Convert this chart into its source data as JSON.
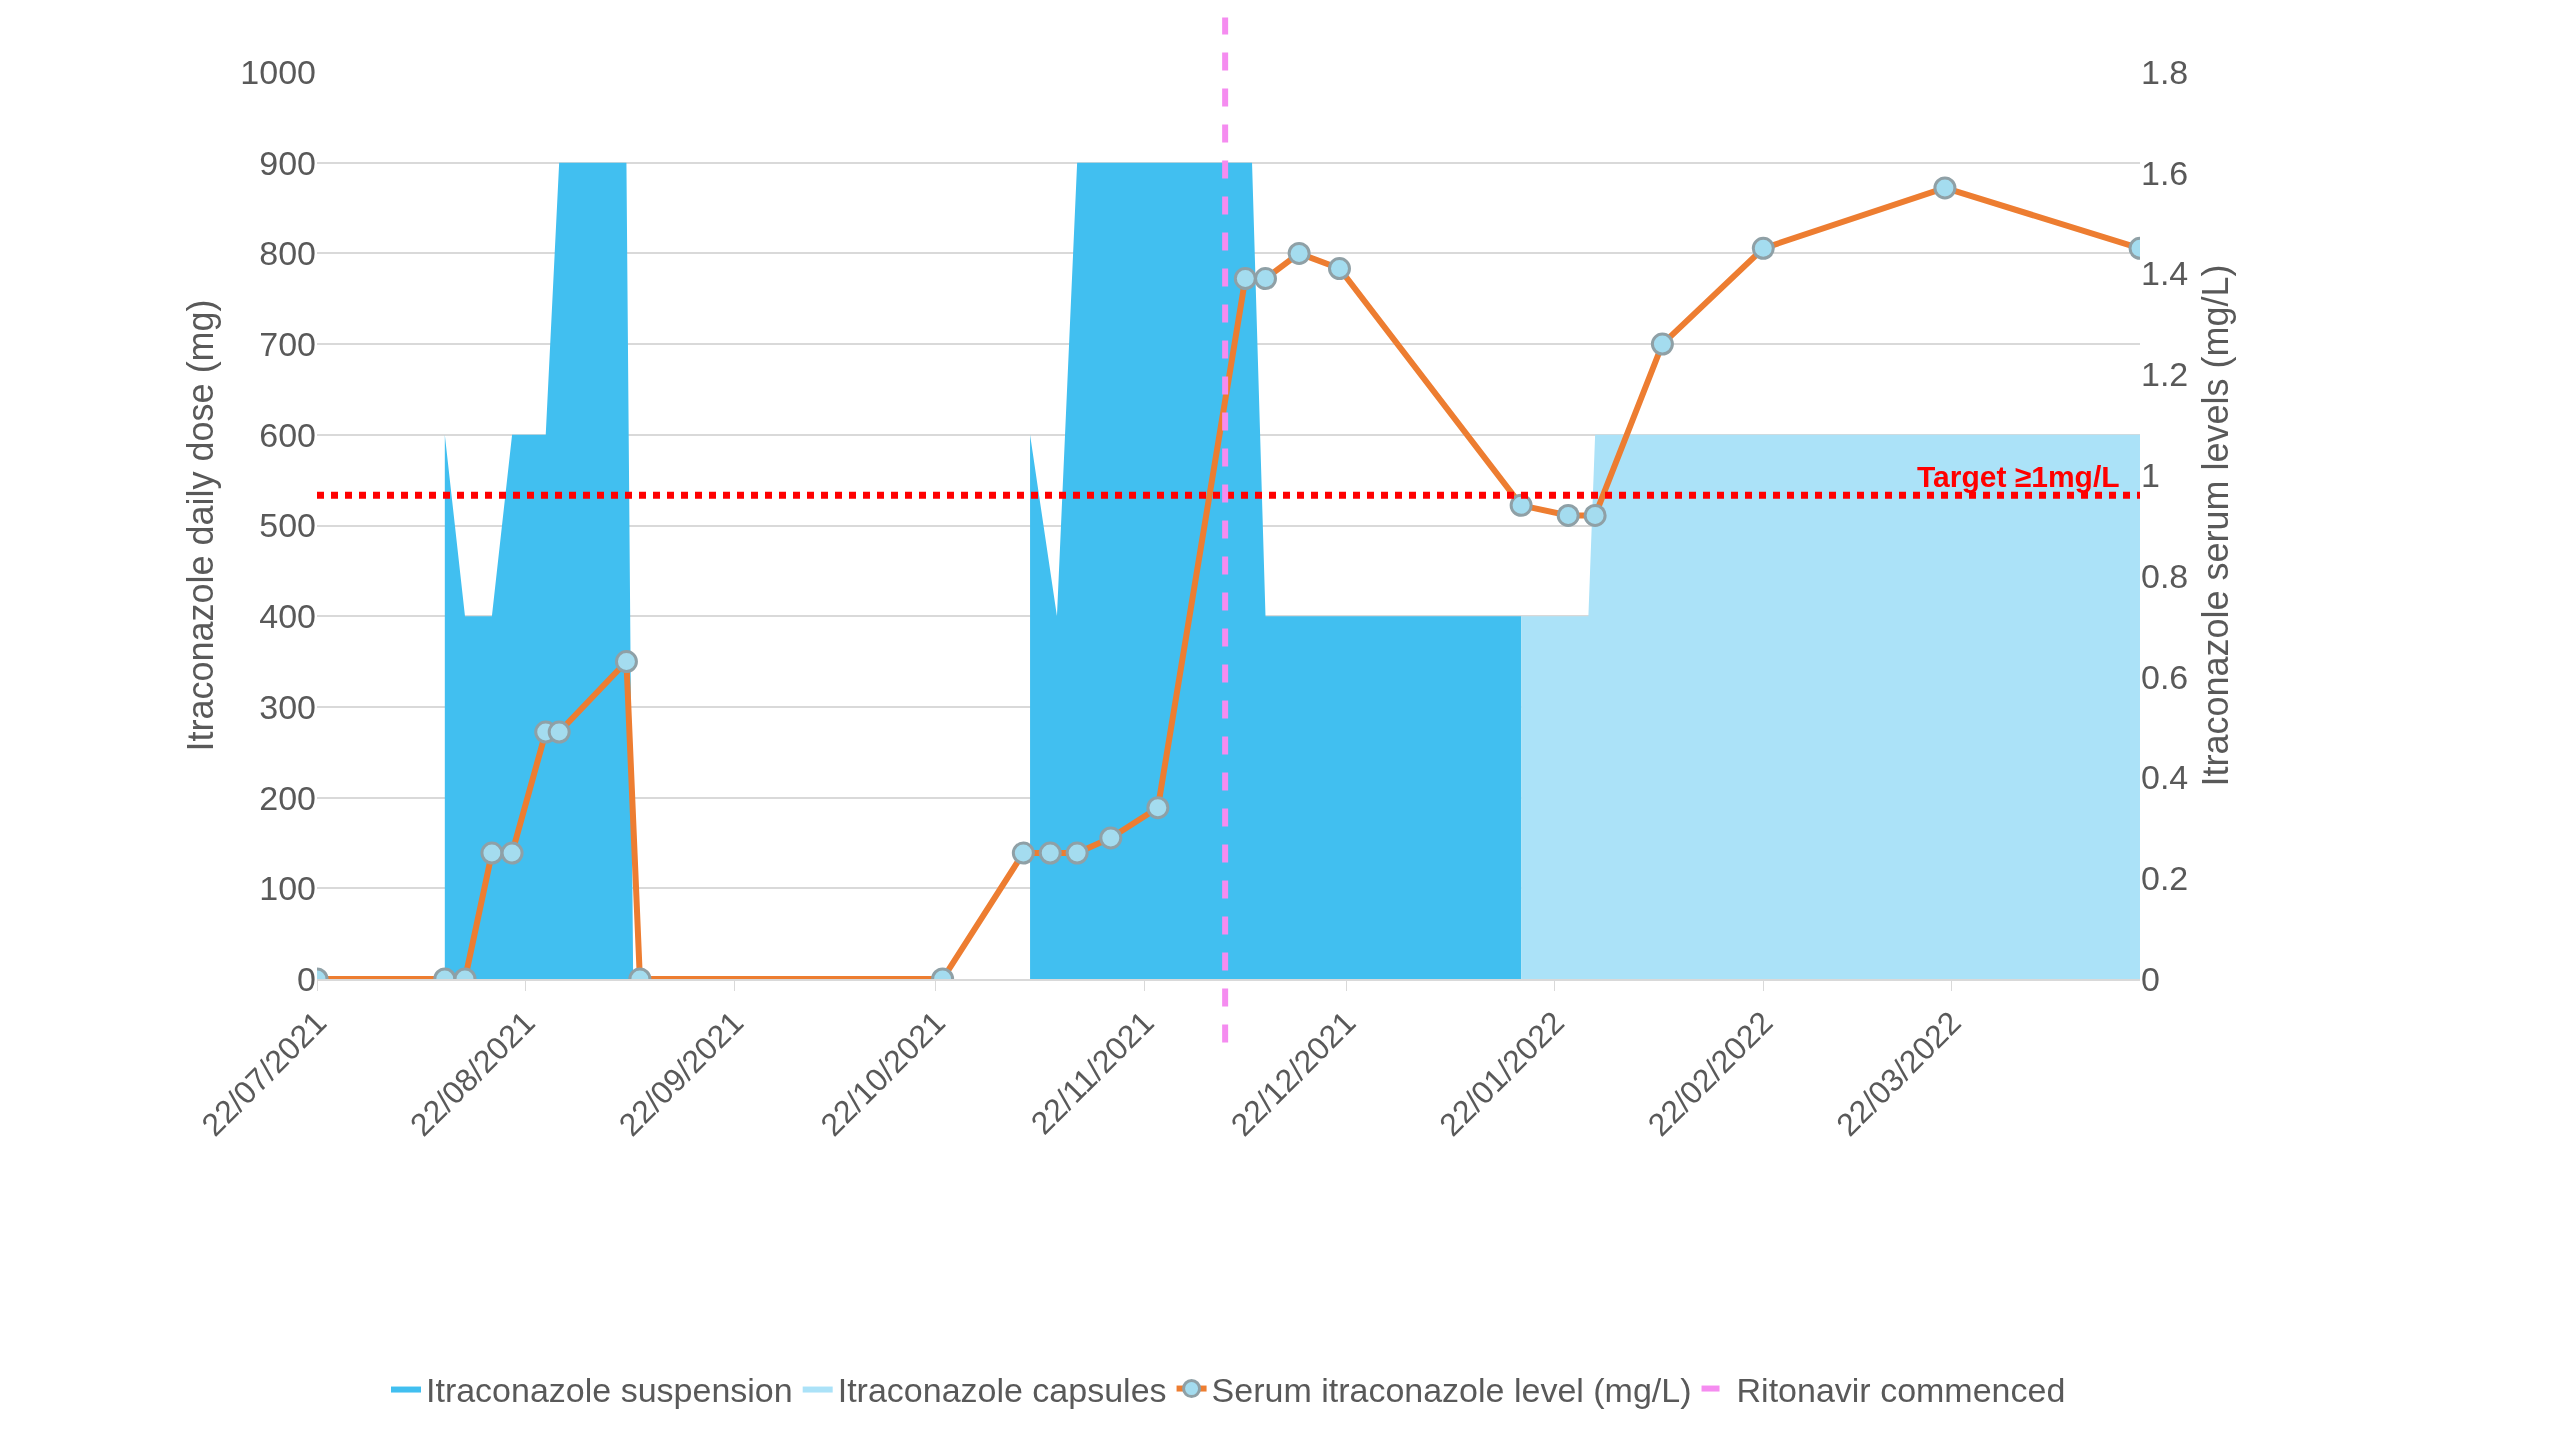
{
  "chart_data": {
    "type": "area",
    "ylabel": "Itraconazole daily dose (mg)",
    "y2label": "Itraconazole serum levels (mg/L)",
    "xlim": [
      "2021-07-22",
      "2022-04-19"
    ],
    "xticks": [
      {
        "value": "2021-07-22",
        "label": "22/07/2021"
      },
      {
        "value": "2021-08-22",
        "label": "22/08/2021"
      },
      {
        "value": "2021-09-22",
        "label": "22/09/2021"
      },
      {
        "value": "2021-10-22",
        "label": "22/10/2021"
      },
      {
        "value": "2021-11-22",
        "label": "22/11/2021"
      },
      {
        "value": "2021-12-22",
        "label": "22/12/2021"
      },
      {
        "value": "2022-01-22",
        "label": "22/01/2022"
      },
      {
        "value": "2022-02-22",
        "label": "22/02/2022"
      },
      {
        "value": "2022-03-22",
        "label": "22/03/2022"
      }
    ],
    "ylim": [
      0,
      1000
    ],
    "yticks": [
      0,
      100,
      200,
      300,
      400,
      500,
      600,
      700,
      800,
      900,
      1000
    ],
    "y2lim": [
      0,
      1.8
    ],
    "y2ticks": [
      0,
      0.2,
      0.4,
      0.6,
      0.8,
      1,
      1.2,
      1.4,
      1.6,
      1.8
    ],
    "grid": "y",
    "legend": "bottom",
    "series": [
      {
        "name": "Itraconazole suspension",
        "color": "#41bff0",
        "x": [
          "2021-08-10",
          "2021-08-13",
          "2021-08-17",
          "2021-08-20",
          "2021-08-25",
          "2021-08-27",
          "2021-09-06",
          "2021-09-07",
          "2021-11-05",
          "2021-11-05",
          "2021-11-09",
          "2021-11-12",
          "2021-12-08",
          "2021-12-10",
          "2022-01-17",
          "2022-01-17"
        ],
        "values": [
          600,
          400,
          400,
          600,
          600,
          900,
          900,
          0,
          0,
          600,
          400,
          900,
          900,
          400,
          400,
          0
        ]
      },
      {
        "name": "Itraconazole capsules",
        "color": "#abe2f8",
        "x": [
          "2022-01-17",
          "2022-01-17",
          "2022-01-27",
          "2022-01-28",
          "2022-04-19",
          "2022-04-19"
        ],
        "values": [
          0,
          400,
          400,
          600,
          600,
          0
        ]
      },
      {
        "name": "Serum itraconazole level (mg/L)",
        "type": "line",
        "axis": "y2",
        "color": "#ed7d31",
        "marker": "circle",
        "x": [
          "2021-07-22",
          "2021-08-10",
          "2021-08-13",
          "2021-08-17",
          "2021-08-20",
          "2021-08-25",
          "2021-08-27",
          "2021-09-06",
          "2021-09-08",
          "2021-10-23",
          "2021-11-04",
          "2021-11-08",
          "2021-11-12",
          "2021-11-17",
          "2021-11-24",
          "2021-12-07",
          "2021-12-10",
          "2021-12-15",
          "2021-12-21",
          "2022-01-17",
          "2022-01-24",
          "2022-01-28",
          "2022-02-07",
          "2022-02-22",
          "2022-03-21",
          "2022-04-19"
        ],
        "values": [
          0,
          0,
          0,
          0.25,
          0.25,
          0.49,
          0.49,
          0.63,
          0,
          0,
          0.25,
          0.25,
          0.25,
          0.28,
          0.34,
          1.39,
          1.39,
          1.44,
          1.41,
          0.94,
          0.92,
          0.92,
          1.26,
          1.45,
          1.57,
          1.45
        ]
      }
    ],
    "ref_lines": [
      {
        "axis": "y2",
        "value": 0.96,
        "label": "Target ≥1mg/L",
        "color": "#ff0000",
        "line_style": "dotted"
      },
      {
        "axis": "x",
        "value": "2021-12-04",
        "label": "Ritonavir commenced",
        "color": "#f58cf0",
        "line_style": "dashed"
      }
    ]
  }
}
